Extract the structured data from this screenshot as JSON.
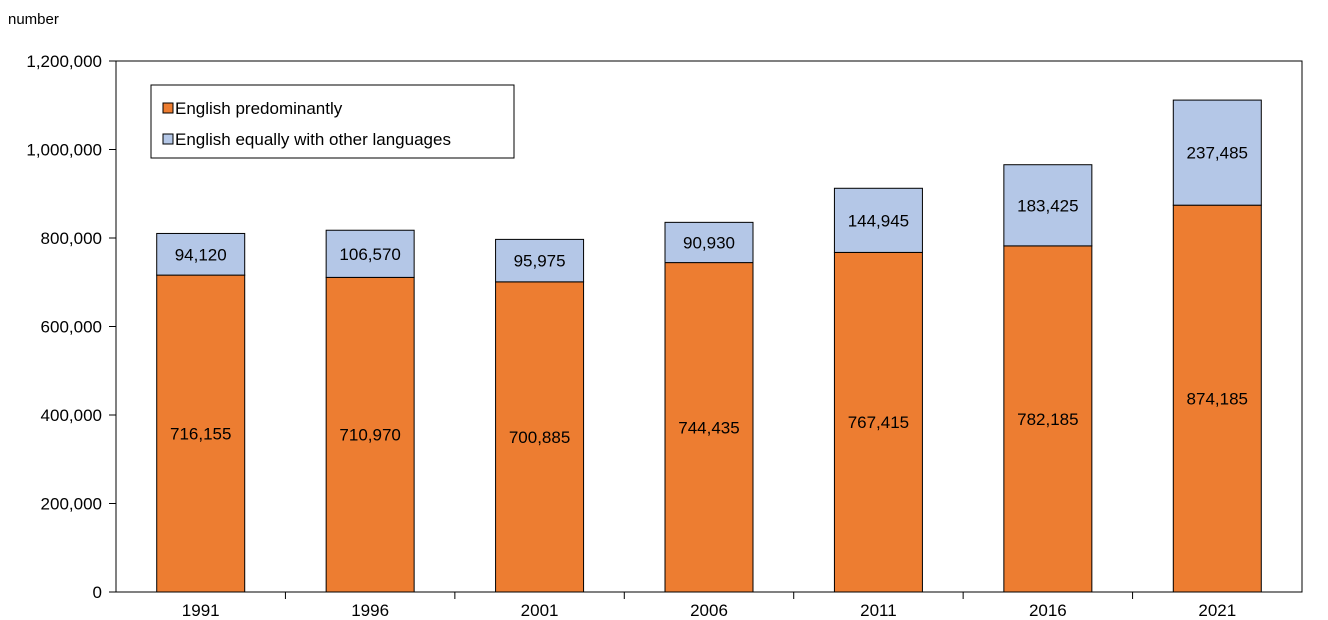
{
  "chart_data": {
    "type": "bar",
    "stacked": true,
    "ylabel": "number",
    "categories": [
      "1991",
      "1996",
      "2001",
      "2006",
      "2011",
      "2016",
      "2021"
    ],
    "ylim": [
      0,
      1200000
    ],
    "yticks": [
      0,
      200000,
      400000,
      600000,
      800000,
      1000000,
      1200000
    ],
    "ytick_labels": [
      "0",
      "200,000",
      "400,000",
      "600,000",
      "800,000",
      "1,000,000",
      "1,200,000"
    ],
    "grid": false,
    "legend_position": "top-left",
    "series": [
      {
        "name": "English predominantly",
        "color": "#ED7D31",
        "values": [
          716155,
          710970,
          700885,
          744435,
          767415,
          782185,
          874185
        ],
        "labels": [
          "716,155",
          "710,970",
          "700,885",
          "744,435",
          "767,415",
          "782,185",
          "874,185"
        ]
      },
      {
        "name": "English equally with other languages",
        "color": "#B4C7E7",
        "values": [
          94120,
          106570,
          95975,
          90930,
          144945,
          183425,
          237485
        ],
        "labels": [
          "94,120",
          "106,570",
          "95,975",
          "90,930",
          "144,945",
          "183,425",
          "237,485"
        ]
      }
    ]
  }
}
